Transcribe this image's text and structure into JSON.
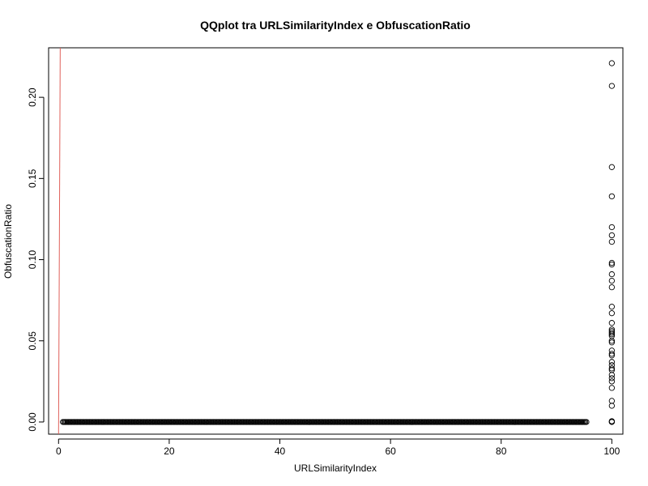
{
  "chart_data": {
    "type": "scatter",
    "title": "QQplot tra URLSimilarityIndex e ObfuscationRatio",
    "xlabel": "URLSimilarityIndex",
    "ylabel": "ObfuscationRatio",
    "xlim": [
      -1.8,
      102
    ],
    "ylim": [
      -0.0075,
      0.2305
    ],
    "x_ticks": [
      0,
      20,
      40,
      60,
      80,
      100
    ],
    "x_tick_labels": [
      "0",
      "20",
      "40",
      "60",
      "80",
      "100"
    ],
    "y_ticks": [
      0,
      0.05,
      0.1,
      0.15,
      0.2
    ],
    "y_tick_labels": [
      "0.00",
      "0.05",
      "0.10",
      "0.15",
      "0.20"
    ],
    "grid": false,
    "legend": "none",
    "reference_line": {
      "points": [
        [
          0,
          -0.0075
        ],
        [
          0.3,
          0.2305
        ]
      ],
      "color": "#e0605a"
    },
    "series": [
      {
        "marker": "open-circle",
        "color": "#000000",
        "dense_range": {
          "x_start": 0.8,
          "x_end": 95.4,
          "step": 0.2,
          "y": 0
        },
        "points": [
          [
            100,
            0.221
          ],
          [
            100,
            0.207
          ],
          [
            100,
            0.157
          ],
          [
            100,
            0.139
          ],
          [
            100,
            0.12
          ],
          [
            100,
            0.115
          ],
          [
            100,
            0.111
          ],
          [
            100,
            0.098
          ],
          [
            100,
            0.097
          ],
          [
            100,
            0.091
          ],
          [
            100,
            0.087
          ],
          [
            100,
            0.083
          ],
          [
            100,
            0.071
          ],
          [
            100,
            0.067
          ],
          [
            100,
            0.061
          ],
          [
            100,
            0.057
          ],
          [
            100,
            0.056
          ],
          [
            100,
            0.055
          ],
          [
            100,
            0.054
          ],
          [
            100,
            0.053
          ],
          [
            100,
            0.05
          ],
          [
            100,
            0.049
          ],
          [
            100,
            0.044
          ],
          [
            100,
            0.042
          ],
          [
            100,
            0.041
          ],
          [
            100,
            0.037
          ],
          [
            100,
            0.035
          ],
          [
            100,
            0.033
          ],
          [
            100,
            0.032
          ],
          [
            100,
            0.029
          ],
          [
            100,
            0.027
          ],
          [
            100,
            0.025
          ],
          [
            100,
            0.021
          ],
          [
            100,
            0.013
          ],
          [
            100,
            0.01
          ],
          [
            100,
            0.0005
          ],
          [
            100,
            0.0002
          ],
          [
            100,
            0
          ]
        ]
      }
    ]
  }
}
